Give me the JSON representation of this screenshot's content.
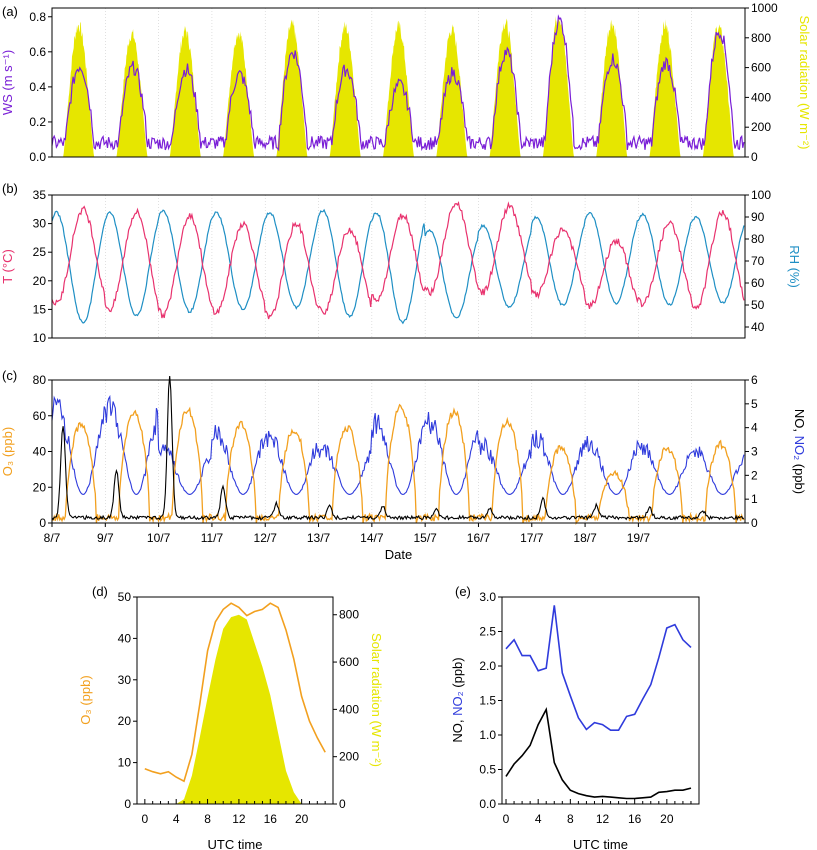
{
  "colors": {
    "ws": "#7a1fd6",
    "solar": "#e6e600",
    "temp": "#e8326e",
    "rh": "#1f8fc4",
    "o3": "#f2a01f",
    "no": "#000000",
    "no2": "#2f3bdc",
    "axis": "#000000"
  },
  "chart_data": [
    {
      "panel": "(a)",
      "type": "line+area",
      "x_unit": "day (July 2016)",
      "xlim": [
        8,
        21
      ],
      "left_axis": {
        "label": "WS (m s⁻¹)",
        "ylim": [
          0,
          0.85
        ],
        "ticks": [
          0.0,
          0.2,
          0.4,
          0.6,
          0.8
        ]
      },
      "right_axis": {
        "label": "Solar radiation (W m⁻²)",
        "ylim": [
          0,
          1000
        ],
        "ticks": [
          0,
          200,
          400,
          600,
          800,
          1000
        ]
      },
      "series": [
        {
          "name": "WS",
          "axis": "left",
          "style": "line",
          "daily_peak": [
            0.52,
            0.51,
            0.5,
            0.47,
            0.6,
            0.5,
            0.41,
            0.48,
            0.6,
            0.78,
            0.56,
            0.54,
            0.72
          ]
        },
        {
          "name": "Solar radiation",
          "axis": "right",
          "style": "area",
          "daily_peak": [
            930,
            870,
            890,
            880,
            930,
            920,
            920,
            900,
            950,
            1000,
            950,
            930,
            920
          ]
        }
      ]
    },
    {
      "panel": "(b)",
      "type": "line",
      "x_unit": "day (July 2016)",
      "xlim": [
        8,
        21
      ],
      "left_axis": {
        "label": "T (°C)",
        "ylim": [
          10,
          35
        ],
        "ticks": [
          10,
          15,
          20,
          25,
          30,
          35
        ]
      },
      "right_axis": {
        "label": "RH (%)",
        "ylim": [
          35,
          100
        ],
        "ticks": [
          40,
          50,
          60,
          70,
          80,
          90,
          100
        ]
      },
      "series": [
        {
          "name": "T",
          "axis": "left",
          "daily_max": [
            32.5,
            32.0,
            31.5,
            30.0,
            30.0,
            29.0,
            31.5,
            33.5,
            33.0,
            29.0,
            27.0,
            30.0,
            32.0
          ],
          "daily_min": [
            16.0,
            15.0,
            14.0,
            14.5,
            13.5,
            14.5,
            16.5,
            18.0,
            18.0,
            17.5,
            15.5,
            16.0,
            15.0
          ]
        },
        {
          "name": "RH",
          "axis": "right",
          "daily_max": [
            92,
            92,
            93,
            92,
            92,
            93,
            92,
            84,
            86,
            90,
            92,
            91,
            90
          ],
          "daily_min": [
            42,
            45,
            47,
            48,
            49,
            45,
            42,
            44,
            49,
            50,
            51,
            50,
            51
          ]
        }
      ]
    },
    {
      "panel": "(c)",
      "type": "line",
      "x_unit": "day (July 2016)",
      "xlim": [
        8,
        21
      ],
      "xlabel": "Date",
      "x_ticks": [
        8,
        9,
        10,
        11,
        12,
        13,
        14,
        15,
        16,
        17,
        18,
        19
      ],
      "x_tick_labels": [
        "8/7",
        "9/7",
        "10/7",
        "11/7",
        "12/7",
        "13/7",
        "14/7",
        "15/7",
        "16/7",
        "17/7",
        "18/7",
        "19/7"
      ],
      "left_axis": {
        "label": "O₃ (ppb)",
        "ylim": [
          0,
          80
        ],
        "ticks": [
          0,
          20,
          40,
          60,
          80
        ]
      },
      "right_axis": {
        "label_parts": [
          "NO, ",
          "NO₂",
          " (ppb)"
        ],
        "ylim": [
          0,
          6
        ],
        "ticks": [
          0,
          1,
          2,
          3,
          4,
          5,
          6
        ]
      },
      "series": [
        {
          "name": "O₃",
          "axis": "left",
          "daily_max": [
            55,
            62,
            63,
            55,
            52,
            53,
            65,
            62,
            57,
            42,
            28,
            42,
            44
          ]
        },
        {
          "name": "NO",
          "axis": "right",
          "daily_peak": [
            3.9,
            2.0,
            6.0,
            1.3,
            0.6,
            0.5,
            0.5,
            0.4,
            0.4,
            0.8,
            0.5,
            0.4,
            0.3
          ]
        },
        {
          "name": "NO₂",
          "axis": "right",
          "daily_peak": [
            5.6,
            5.6,
            3.5,
            4.3,
            4.0,
            3.4,
            4.7,
            4.7,
            3.6,
            4.0,
            3.7,
            3.5,
            3.3
          ]
        }
      ]
    },
    {
      "panel": "(d)",
      "type": "line+area",
      "xlabel": "UTC time",
      "x": [
        0,
        1,
        2,
        3,
        4,
        5,
        6,
        7,
        8,
        9,
        10,
        11,
        12,
        13,
        14,
        15,
        16,
        17,
        18,
        19,
        20,
        21,
        22,
        23
      ],
      "xlim": [
        -1,
        24
      ],
      "x_ticks": [
        0,
        4,
        8,
        12,
        16,
        20
      ],
      "left_axis": {
        "label": "O₃ (ppb)",
        "ylim": [
          0,
          50
        ],
        "ticks": [
          0,
          10,
          20,
          30,
          40,
          50
        ]
      },
      "right_axis": {
        "label": "Solar radiation (W m⁻²)",
        "ylim": [
          0,
          875
        ],
        "ticks": [
          0,
          200,
          400,
          600,
          800
        ]
      },
      "series": [
        {
          "name": "O₃",
          "axis": "left",
          "style": "line",
          "values": [
            8.5,
            7.8,
            7.3,
            7.8,
            6.5,
            5.5,
            12.0,
            24.0,
            37.0,
            44.0,
            47.0,
            48.5,
            47.5,
            45.5,
            46.5,
            47.0,
            48.5,
            47.5,
            42.0,
            35.0,
            26.0,
            20.0,
            16.0,
            12.5
          ]
        },
        {
          "name": "Solar radiation",
          "axis": "right",
          "style": "area",
          "values": [
            0,
            0,
            0,
            0,
            0,
            20,
            120,
            280,
            450,
            610,
            740,
            790,
            800,
            780,
            680,
            580,
            460,
            300,
            140,
            50,
            0,
            0,
            0,
            0
          ]
        }
      ]
    },
    {
      "panel": "(e)",
      "type": "line",
      "xlabel": "UTC time",
      "x": [
        0,
        1,
        2,
        3,
        4,
        5,
        6,
        7,
        8,
        9,
        10,
        11,
        12,
        13,
        14,
        15,
        16,
        17,
        18,
        19,
        20,
        21,
        22,
        23
      ],
      "xlim": [
        -0.5,
        24
      ],
      "x_ticks": [
        0,
        4,
        8,
        12,
        16,
        20
      ],
      "left_axis": {
        "label_parts": [
          "NO, ",
          "NO₂",
          " (ppb)"
        ],
        "ylim": [
          0,
          3.0
        ],
        "ticks": [
          0.0,
          0.5,
          1.0,
          1.5,
          2.0,
          2.5,
          3.0
        ]
      },
      "series": [
        {
          "name": "NO₂",
          "values": [
            2.25,
            2.38,
            2.15,
            2.15,
            1.93,
            1.97,
            2.88,
            1.9,
            1.57,
            1.25,
            1.08,
            1.18,
            1.15,
            1.07,
            1.07,
            1.27,
            1.3,
            1.52,
            1.73,
            2.12,
            2.55,
            2.6,
            2.38,
            2.27
          ]
        },
        {
          "name": "NO",
          "values": [
            0.4,
            0.58,
            0.7,
            0.85,
            1.15,
            1.37,
            0.6,
            0.35,
            0.2,
            0.15,
            0.12,
            0.1,
            0.11,
            0.1,
            0.09,
            0.08,
            0.08,
            0.09,
            0.1,
            0.17,
            0.18,
            0.2,
            0.2,
            0.23
          ]
        }
      ]
    }
  ]
}
